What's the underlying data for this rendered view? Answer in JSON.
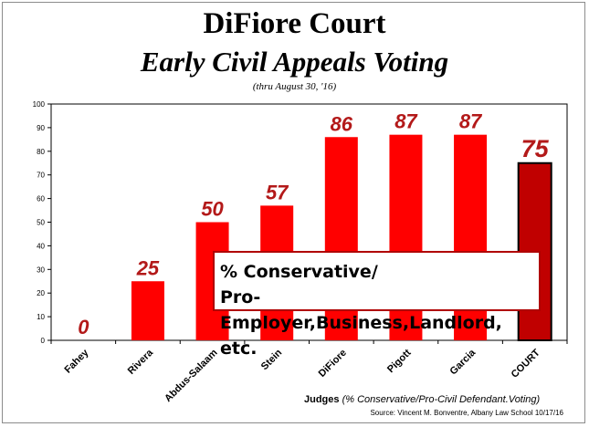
{
  "chart_data": {
    "type": "bar",
    "title": "DiFiore Court",
    "subtitle": "Early Civil Appeals Voting",
    "note": "(thru August 30, '16)",
    "categories": [
      "Fahey",
      "Rivera",
      "Abdus-Salaam",
      "Stein",
      "DiFiore",
      "Pigott",
      "Garcia",
      "COURT"
    ],
    "values": [
      0,
      25,
      50,
      57,
      86,
      87,
      87,
      75
    ],
    "ylim": [
      0,
      100
    ],
    "yticks": [
      0,
      10,
      20,
      30,
      40,
      50,
      60,
      70,
      80,
      90,
      100
    ],
    "xlabel": "Judges",
    "xlabel_note": "(% Conservative/Pro-Civil Defendant.Voting)",
    "ylabel": "",
    "annotation": [
      "% Conservative/",
      "Pro-Employer,Business,Landlord, etc."
    ],
    "source": "Source: Vincent M. Bonventre, Albany Law School  10/17/16",
    "grid": false,
    "colors": {
      "bar": "#ff0000",
      "court_bar": "#c00000",
      "court_border": "#000000",
      "label": "#b31919"
    }
  }
}
